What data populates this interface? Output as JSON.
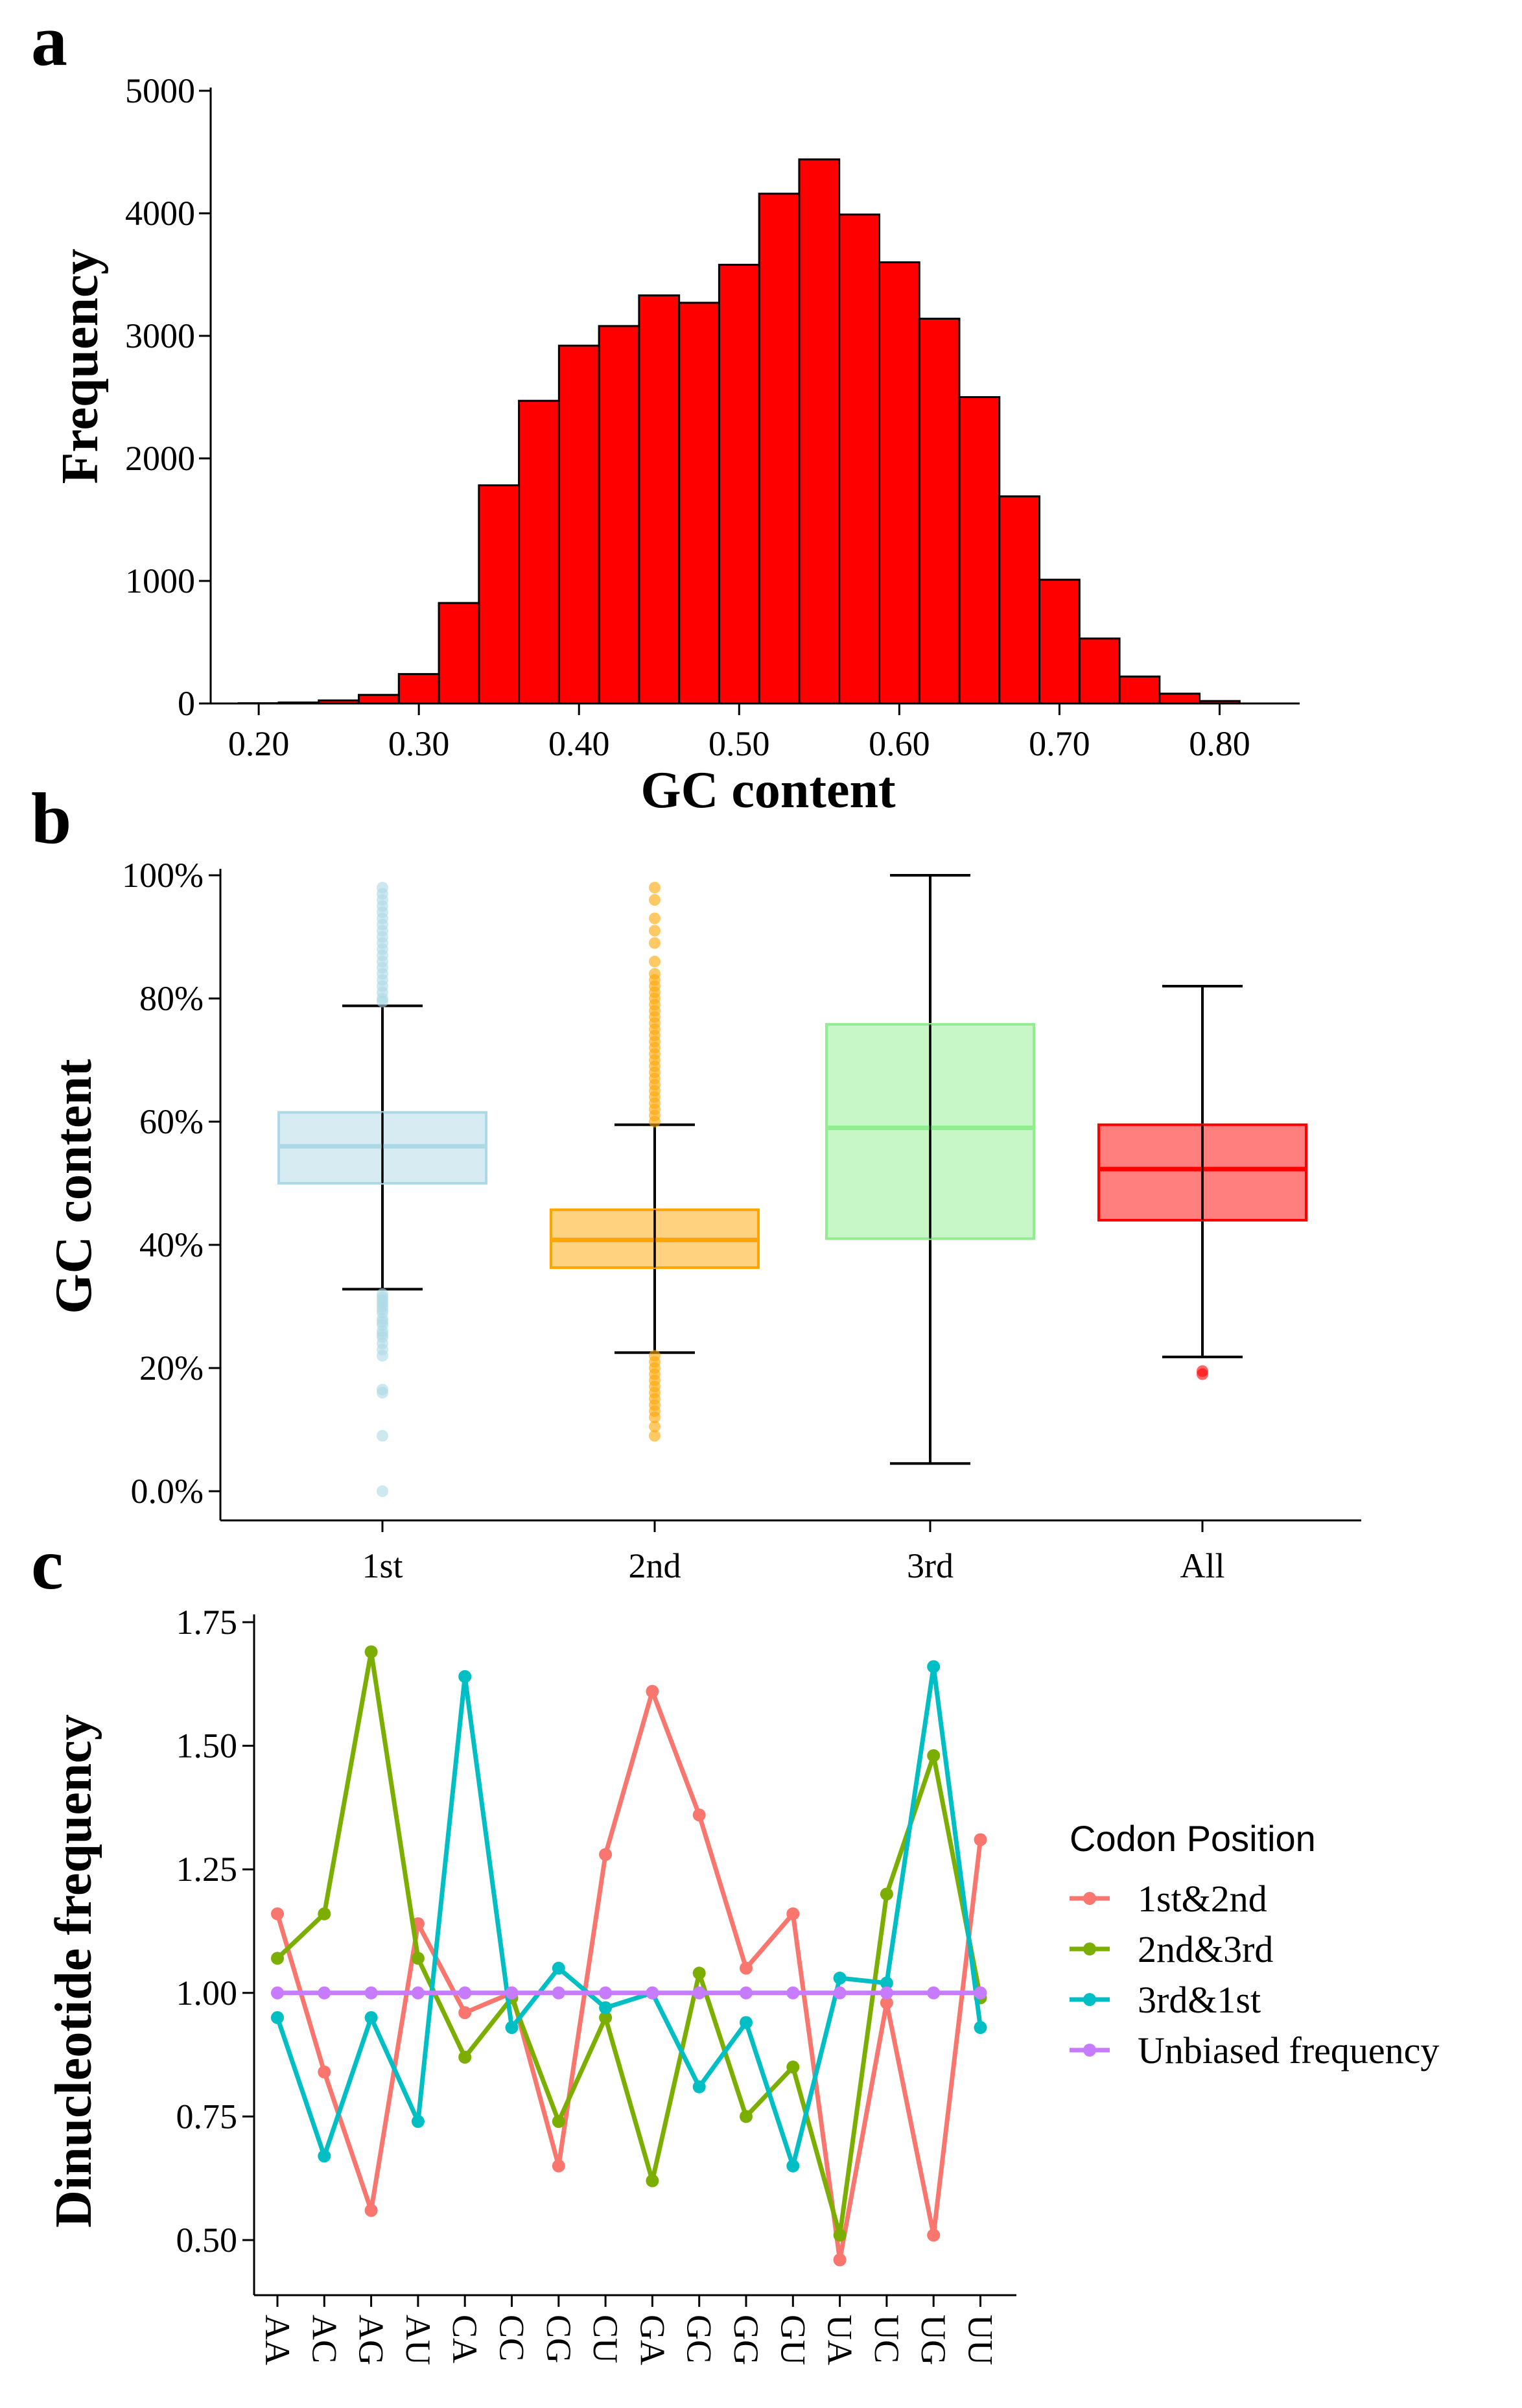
{
  "panels": {
    "a": {
      "label": "a"
    },
    "b": {
      "label": "b"
    },
    "c": {
      "label": "c"
    }
  },
  "chart_data": [
    {
      "id": "a",
      "type": "bar",
      "subtype": "histogram",
      "xlabel": "GC content",
      "ylabel": "Frequency",
      "xlim": [
        0.17,
        0.85
      ],
      "ylim": [
        0,
        5000
      ],
      "xticks": [
        0.2,
        0.3,
        0.4,
        0.5,
        0.6,
        0.7,
        0.8
      ],
      "xtick_labels": [
        "0.20",
        "0.30",
        "0.40",
        "0.50",
        "0.60",
        "0.70",
        "0.80"
      ],
      "yticks": [
        0,
        1000,
        2000,
        3000,
        4000,
        5000
      ],
      "ytick_labels": [
        "0",
        "1000",
        "2000",
        "3000",
        "4000",
        "5000"
      ],
      "bar_color": "#ff0000",
      "bin_width": 0.025,
      "bins": [
        {
          "start": 0.1875,
          "value": 2
        },
        {
          "start": 0.2125,
          "value": 8
        },
        {
          "start": 0.2375,
          "value": 25
        },
        {
          "start": 0.2625,
          "value": 70
        },
        {
          "start": 0.2875,
          "value": 240
        },
        {
          "start": 0.3125,
          "value": 820
        },
        {
          "start": 0.3375,
          "value": 1780
        },
        {
          "start": 0.3625,
          "value": 2470
        },
        {
          "start": 0.3875,
          "value": 2920
        },
        {
          "start": 0.4125,
          "value": 3080
        },
        {
          "start": 0.4375,
          "value": 3330
        },
        {
          "start": 0.4625,
          "value": 3270
        },
        {
          "start": 0.4875,
          "value": 3580
        },
        {
          "start": 0.5125,
          "value": 4160
        },
        {
          "start": 0.5375,
          "value": 4440
        },
        {
          "start": 0.5625,
          "value": 3990
        },
        {
          "start": 0.5875,
          "value": 3600
        },
        {
          "start": 0.6125,
          "value": 3140
        },
        {
          "start": 0.6375,
          "value": 2500
        },
        {
          "start": 0.6625,
          "value": 1690
        },
        {
          "start": 0.6875,
          "value": 1010
        },
        {
          "start": 0.7125,
          "value": 530
        },
        {
          "start": 0.7375,
          "value": 220
        },
        {
          "start": 0.7625,
          "value": 80
        },
        {
          "start": 0.7875,
          "value": 20
        }
      ]
    },
    {
      "id": "b",
      "type": "box",
      "xlabel": "",
      "ylabel": "GC content",
      "ylim": [
        0,
        100
      ],
      "yticks": [
        0,
        20,
        40,
        60,
        80,
        100
      ],
      "ytick_labels": [
        "0.0%",
        "20%",
        "40%",
        "60%",
        "80%",
        "100%"
      ],
      "categories": [
        "1st",
        "2nd",
        "3rd",
        "All"
      ],
      "boxes": [
        {
          "name": "1st",
          "color": "#add8e6",
          "min": 32.8,
          "q1": 50.0,
          "median": 56.0,
          "q3": 61.5,
          "max": 78.8,
          "outliers": [
            0,
            9,
            16,
            16.5,
            22,
            23,
            24,
            25,
            25.5,
            26,
            27,
            27.5,
            28,
            29,
            29.5,
            30,
            30.5,
            31,
            31.5,
            32,
            79.5,
            80,
            81,
            82,
            83,
            84,
            85,
            86,
            87,
            88,
            89,
            90,
            91,
            92,
            93,
            94,
            95,
            96,
            97,
            98
          ]
        },
        {
          "name": "2nd",
          "color": "#ffa500",
          "min": 22.5,
          "q1": 36.3,
          "median": 40.8,
          "q3": 45.7,
          "max": 59.5,
          "outliers": [
            9,
            10.5,
            12,
            13,
            14,
            15,
            16,
            17,
            18,
            19,
            20,
            21,
            22,
            60,
            61,
            62,
            63,
            64,
            65,
            66,
            67,
            68,
            69,
            70,
            71,
            72,
            73,
            74,
            75,
            76,
            77,
            78,
            79,
            80,
            81,
            82,
            83,
            84,
            86,
            89,
            91,
            93,
            96,
            98
          ]
        },
        {
          "name": "3rd",
          "color": "#90ee90",
          "min": 4.5,
          "q1": 41.0,
          "median": 59.0,
          "q3": 75.8,
          "max": 100,
          "outliers": []
        },
        {
          "name": "All",
          "color": "#ff0000",
          "min": 21.8,
          "q1": 44.0,
          "median": 52.3,
          "q3": 59.5,
          "max": 82.0,
          "outliers": [
            19,
            19.5
          ]
        }
      ]
    },
    {
      "id": "c",
      "type": "line",
      "xlabel": "",
      "ylabel": "Dinucleotide frequency",
      "ylim": [
        0.43,
        1.75
      ],
      "yticks": [
        0.5,
        0.75,
        1.0,
        1.25,
        1.5,
        1.75
      ],
      "ytick_labels": [
        "0.50",
        "0.75",
        "1.00",
        "1.25",
        "1.50",
        "1.75"
      ],
      "categories": [
        "AA",
        "AC",
        "AG",
        "AU",
        "CA",
        "CC",
        "CG",
        "CU",
        "GA",
        "GC",
        "GG",
        "GU",
        "UA",
        "UC",
        "UG",
        "UU"
      ],
      "legend_title": "Codon Position",
      "series": [
        {
          "name": "1st&2nd",
          "color": "#f8766d",
          "values": [
            1.16,
            0.84,
            0.56,
            1.14,
            0.96,
            1.0,
            0.65,
            1.28,
            1.61,
            1.36,
            1.05,
            1.16,
            0.46,
            0.98,
            0.51,
            1.31
          ]
        },
        {
          "name": "2nd&3rd",
          "color": "#7cae00",
          "values": [
            1.07,
            1.16,
            1.69,
            1.07,
            0.87,
            0.99,
            0.74,
            0.95,
            0.62,
            1.04,
            0.75,
            0.85,
            0.51,
            1.2,
            1.48,
            0.99
          ]
        },
        {
          "name": "3rd&1st",
          "color": "#00bfc4",
          "values": [
            0.95,
            0.67,
            0.95,
            0.74,
            1.64,
            0.93,
            1.05,
            0.97,
            1.0,
            0.81,
            0.94,
            0.65,
            1.03,
            1.02,
            1.66,
            0.93
          ]
        },
        {
          "name": "Unbiased frequency",
          "color": "#c77cff",
          "values": [
            1,
            1,
            1,
            1,
            1,
            1,
            1,
            1,
            1,
            1,
            1,
            1,
            1,
            1,
            1,
            1
          ]
        }
      ]
    }
  ]
}
